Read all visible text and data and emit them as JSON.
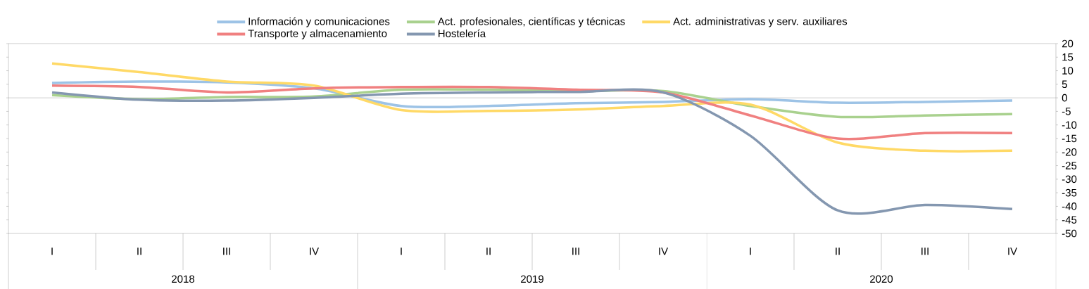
{
  "chart_data": {
    "type": "line",
    "categories": [
      "I",
      "II",
      "III",
      "IV",
      "I",
      "II",
      "III",
      "IV",
      "I",
      "II",
      "III",
      "IV"
    ],
    "annotations": [
      "2018",
      "2019",
      "2020"
    ],
    "ylim": [
      -50,
      20
    ],
    "yticks": [
      -50,
      -45,
      -40,
      -35,
      -30,
      -25,
      -20,
      -15,
      -10,
      -5,
      0,
      5,
      10,
      15,
      20
    ],
    "legend": "top",
    "marker": "none",
    "series": [
      {
        "name": "Información y comunicaciones",
        "color": "#9dc3e6",
        "values": [
          5.5,
          6,
          5.7,
          3.5,
          -3,
          -3,
          -2,
          -1.5,
          -0.5,
          -1.8,
          -1.5,
          -1
        ]
      },
      {
        "name": "Act. profesionales, científicas y técnicas",
        "color": "#a9d18e",
        "values": [
          1,
          -0.5,
          0.3,
          0.5,
          3,
          3,
          2.5,
          2.5,
          -3,
          -7,
          -6.5,
          -6
        ]
      },
      {
        "name": "Act. administrativas y serv. auxiliares",
        "color": "#ffd966",
        "values": [
          12.7,
          9.5,
          6,
          4.5,
          -4.5,
          -4.8,
          -4.3,
          -3,
          -2.5,
          -16.5,
          -19.5,
          -19.5
        ]
      },
      {
        "name": "Transporte y almacenamiento",
        "color": "#f08080",
        "values": [
          4.5,
          4,
          2,
          3.5,
          4,
          4,
          3,
          2,
          -6.5,
          -15,
          -13,
          -13
        ]
      },
      {
        "name": "Hostelería",
        "color": "#8497b0",
        "values": [
          2,
          -0.7,
          -1,
          0,
          1.5,
          2,
          2.2,
          2,
          -14,
          -41.5,
          -39.5,
          -41
        ]
      }
    ]
  }
}
